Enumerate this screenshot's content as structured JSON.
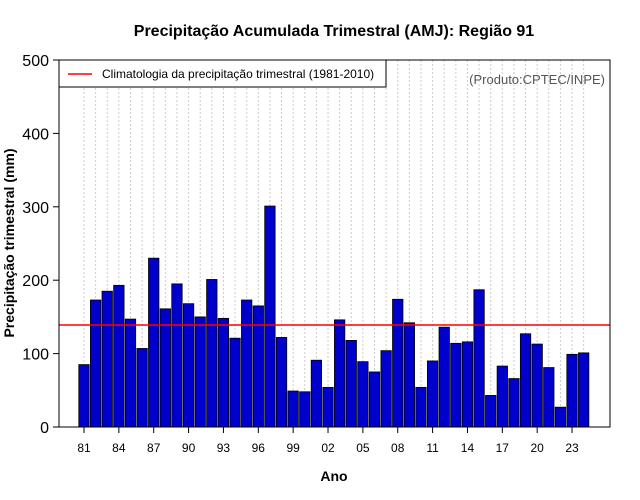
{
  "chart_data": {
    "type": "bar",
    "title": "Precipitação Acumulada Trimestral (AMJ): Região 91",
    "xlabel": "Ano",
    "ylabel": "Precipitação trimestral (mm)",
    "ylim": [
      0,
      500
    ],
    "yticks": [
      "0",
      "100",
      "200",
      "300",
      "400",
      "500"
    ],
    "ytick_values": [
      0,
      100,
      200,
      300,
      400,
      500
    ],
    "xtick_labels": [
      "81",
      "84",
      "87",
      "90",
      "93",
      "96",
      "99",
      "02",
      "05",
      "08",
      "11",
      "14",
      "17",
      "20",
      "23"
    ],
    "xtick_years": [
      1981,
      1984,
      1987,
      1990,
      1993,
      1996,
      1999,
      2002,
      2005,
      2008,
      2011,
      2014,
      2017,
      2020,
      2023
    ],
    "categories": [
      1981,
      1982,
      1983,
      1984,
      1985,
      1986,
      1987,
      1988,
      1989,
      1990,
      1991,
      1992,
      1993,
      1994,
      1995,
      1996,
      1997,
      1998,
      1999,
      2000,
      2001,
      2002,
      2003,
      2004,
      2005,
      2006,
      2007,
      2008,
      2009,
      2010,
      2011,
      2012,
      2013,
      2014,
      2015,
      2016,
      2017,
      2018,
      2019,
      2020,
      2021,
      2022,
      2023,
      2024
    ],
    "values": [
      85,
      173,
      185,
      193,
      147,
      107,
      230,
      161,
      195,
      168,
      150,
      201,
      148,
      121,
      173,
      165,
      301,
      122,
      49,
      48,
      91,
      54,
      146,
      118,
      89,
      75,
      104,
      174,
      142,
      54,
      90,
      136,
      114,
      116,
      187,
      43,
      83,
      66,
      127,
      113,
      81,
      27,
      99,
      101
    ],
    "climatology": 139,
    "legend": {
      "label": "Climatologia da precipitação trimestral (1981-2010)",
      "position": "top-left"
    },
    "credit": "(Produto:CPTEC/INPE)",
    "colors": {
      "bar": "#0000cc",
      "line": "#ff0000",
      "grid": "#cccccc"
    }
  }
}
